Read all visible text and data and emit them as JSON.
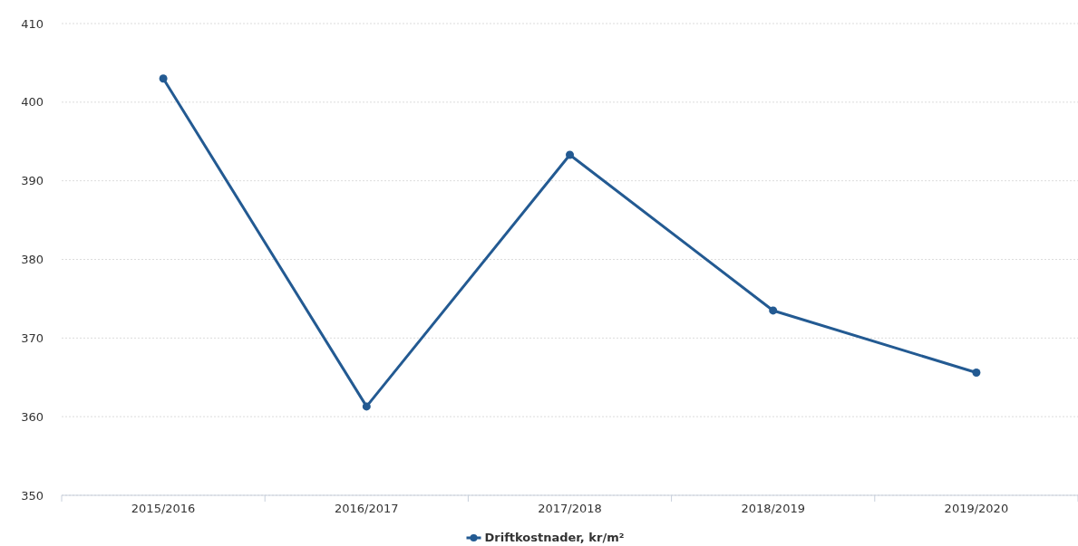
{
  "chart_data": {
    "type": "line",
    "categories": [
      "2015/2016",
      "2016/2017",
      "2017/2018",
      "2018/2019",
      "2019/2020"
    ],
    "series": [
      {
        "name": "Driftkostnader, kr/m²",
        "color": "#235a92",
        "values": [
          403.0,
          361.3,
          393.3,
          373.5,
          365.6
        ]
      }
    ],
    "ylim": [
      350,
      410
    ],
    "yticks": [
      350,
      360,
      370,
      380,
      390,
      400,
      410
    ],
    "grid": "y",
    "legend": "bottom",
    "marker": "circle",
    "line_style": "solid"
  }
}
